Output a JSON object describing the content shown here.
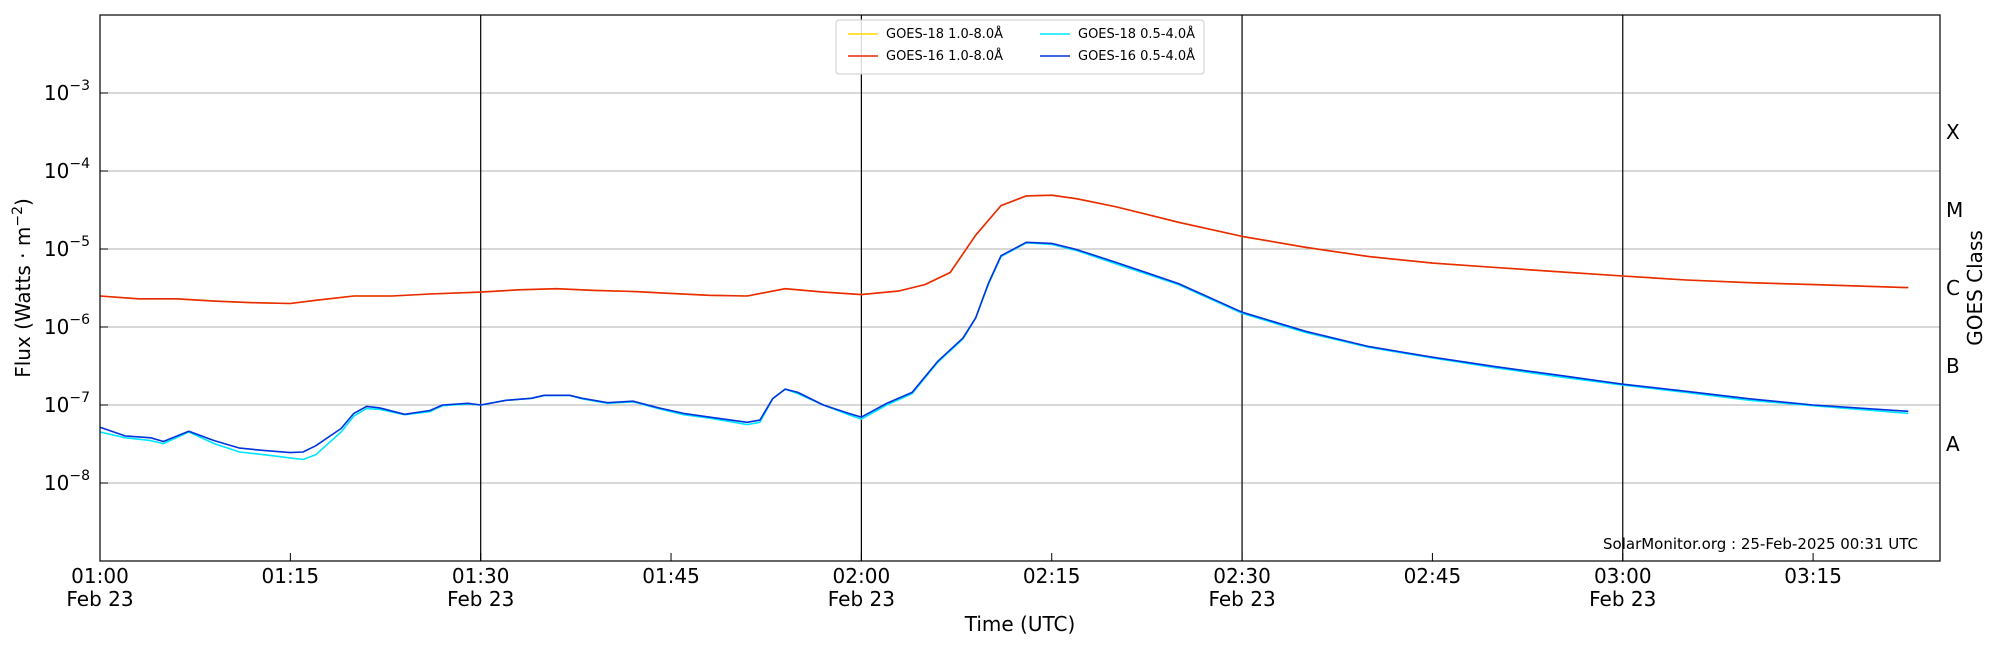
{
  "chart_data": {
    "type": "line",
    "xlabel": "Time (UTC)",
    "ylabel": "Flux (Watts · m",
    "ylabel_sup": "−2",
    "ylabel_close": ")",
    "y2label": "GOES Class",
    "yscale": "log",
    "xlim": [
      0,
      145
    ],
    "ylim": [
      1e-09,
      0.01
    ],
    "grid": "horizontal at decades",
    "legend_position": "top-center",
    "watermark": "SolarMonitor.org : 25-Feb-2025 00:31 UTC",
    "x_ticks": [
      {
        "minute": 0,
        "time": "01:00",
        "date": "Feb 23",
        "major": true
      },
      {
        "minute": 15,
        "time": "01:15",
        "date": "",
        "major": false
      },
      {
        "minute": 30,
        "time": "01:30",
        "date": "Feb 23",
        "major": true
      },
      {
        "minute": 45,
        "time": "01:45",
        "date": "",
        "major": false
      },
      {
        "minute": 60,
        "time": "02:00",
        "date": "Feb 23",
        "major": true
      },
      {
        "minute": 75,
        "time": "02:15",
        "date": "",
        "major": false
      },
      {
        "minute": 90,
        "time": "02:30",
        "date": "Feb 23",
        "major": true
      },
      {
        "minute": 105,
        "time": "02:45",
        "date": "",
        "major": false
      },
      {
        "minute": 120,
        "time": "03:00",
        "date": "Feb 23",
        "major": true
      },
      {
        "minute": 135,
        "time": "03:15",
        "date": "",
        "major": false
      }
    ],
    "y_ticks": [
      {
        "exp": -3,
        "label_base": "10",
        "label_exp": "−3"
      },
      {
        "exp": -4,
        "label_base": "10",
        "label_exp": "−4"
      },
      {
        "exp": -5,
        "label_base": "10",
        "label_exp": "−5"
      },
      {
        "exp": -6,
        "label_base": "10",
        "label_exp": "−6"
      },
      {
        "exp": -7,
        "label_base": "10",
        "label_exp": "−7"
      },
      {
        "exp": -8,
        "label_base": "10",
        "label_exp": "−8"
      }
    ],
    "goes_classes": [
      {
        "label": "X",
        "exp": -3.5
      },
      {
        "label": "M",
        "exp": -4.5
      },
      {
        "label": "C",
        "exp": -5.5
      },
      {
        "label": "B",
        "exp": -6.5
      },
      {
        "label": "A",
        "exp": -7.5
      }
    ],
    "series": [
      {
        "name": "GOES-18 1.0-8.0Å",
        "color": "#ffd700",
        "x": [
          0,
          3,
          6,
          9,
          12,
          15,
          17,
          20,
          23,
          26,
          30,
          33,
          36,
          39,
          42,
          45,
          48,
          51,
          54,
          57,
          60,
          63,
          65,
          67,
          69,
          71,
          73,
          75,
          77,
          80,
          85,
          90,
          95,
          100,
          105,
          110,
          115,
          120,
          125,
          130,
          135,
          142.5
        ],
        "y": [
          2.5e-06,
          2.3e-06,
          2.3e-06,
          2.15e-06,
          2.05e-06,
          2e-06,
          2.2e-06,
          2.5e-06,
          2.5e-06,
          2.65e-06,
          2.8e-06,
          3e-06,
          3.1e-06,
          2.95e-06,
          2.85e-06,
          2.7e-06,
          2.55e-06,
          2.5e-06,
          3.1e-06,
          2.8e-06,
          2.6e-06,
          2.9e-06,
          3.5e-06,
          5e-06,
          1.5e-05,
          3.6e-05,
          4.8e-05,
          4.9e-05,
          4.4e-05,
          3.5e-05,
          2.2e-05,
          1.45e-05,
          1.05e-05,
          8e-06,
          6.6e-06,
          5.8e-06,
          5.1e-06,
          4.5e-06,
          4e-06,
          3.7e-06,
          3.5e-06,
          3.2e-06
        ]
      },
      {
        "name": "GOES-16 1.0-8.0Å",
        "color": "#e8290b",
        "x": [
          0,
          3,
          6,
          9,
          12,
          15,
          17,
          20,
          23,
          26,
          30,
          33,
          36,
          39,
          42,
          45,
          48,
          51,
          54,
          57,
          60,
          63,
          65,
          67,
          69,
          71,
          73,
          75,
          77,
          80,
          85,
          90,
          95,
          100,
          105,
          110,
          115,
          120,
          125,
          130,
          135,
          142.5
        ],
        "y": [
          2.5e-06,
          2.3e-06,
          2.3e-06,
          2.15e-06,
          2.05e-06,
          2e-06,
          2.2e-06,
          2.5e-06,
          2.5e-06,
          2.65e-06,
          2.8e-06,
          3e-06,
          3.1e-06,
          2.95e-06,
          2.85e-06,
          2.7e-06,
          2.55e-06,
          2.5e-06,
          3.1e-06,
          2.8e-06,
          2.6e-06,
          2.9e-06,
          3.5e-06,
          5e-06,
          1.5e-05,
          3.6e-05,
          4.8e-05,
          4.9e-05,
          4.4e-05,
          3.5e-05,
          2.2e-05,
          1.45e-05,
          1.05e-05,
          8e-06,
          6.6e-06,
          5.8e-06,
          5.1e-06,
          4.5e-06,
          4e-06,
          3.7e-06,
          3.5e-06,
          3.2e-06
        ]
      },
      {
        "name": "GOES-18 0.5-4.0Å",
        "color": "#00e5ff",
        "x": [
          0,
          2,
          4,
          5,
          7,
          9,
          11,
          13,
          15,
          16,
          17,
          19,
          20,
          21,
          22,
          24,
          26,
          27,
          29,
          30,
          32,
          34,
          35,
          37,
          38,
          40,
          42,
          44,
          46,
          48,
          51,
          52,
          53,
          54,
          55,
          57,
          59,
          60,
          62,
          64,
          66,
          68,
          69,
          70,
          71,
          73,
          75,
          77,
          80,
          85,
          90,
          95,
          100,
          105,
          110,
          115,
          120,
          125,
          130,
          135,
          142.5
        ],
        "y": [
          4.5e-08,
          3.8e-08,
          3.5e-08,
          3.2e-08,
          4.5e-08,
          3.2e-08,
          2.5e-08,
          2.3e-08,
          2.1e-08,
          2e-08,
          2.3e-08,
          4.5e-08,
          7.2e-08,
          9e-08,
          8.8e-08,
          7.5e-08,
          8.2e-08,
          9.8e-08,
          1.03e-07,
          1e-07,
          1.15e-07,
          1.22e-07,
          1.32e-07,
          1.33e-07,
          1.2e-07,
          1.05e-07,
          1.1e-07,
          9e-08,
          7.5e-08,
          6.8e-08,
          5.6e-08,
          6e-08,
          1.2e-07,
          1.6e-07,
          1.4e-07,
          1e-07,
          7.5e-08,
          6.6e-08,
          1e-07,
          1.4e-07,
          3.5e-07,
          7e-07,
          1.3e-06,
          3.5e-06,
          8e-06,
          1.2e-05,
          1.15e-05,
          9.5e-06,
          6.5e-06,
          3.5e-06,
          1.5e-06,
          8.5e-07,
          5.5e-07,
          4e-07,
          3e-07,
          2.3e-07,
          1.8e-07,
          1.45e-07,
          1.15e-07,
          9.8e-08,
          7.8e-08
        ]
      },
      {
        "name": "GOES-16 0.5-4.0Å",
        "color": "#0033dd",
        "x": [
          0,
          2,
          4,
          5,
          7,
          9,
          11,
          13,
          15,
          16,
          17,
          19,
          20,
          21,
          22,
          24,
          26,
          27,
          29,
          30,
          32,
          34,
          35,
          37,
          38,
          40,
          42,
          44,
          46,
          48,
          51,
          52,
          53,
          54,
          55,
          57,
          59,
          60,
          62,
          64,
          66,
          68,
          69,
          70,
          71,
          73,
          75,
          77,
          80,
          85,
          90,
          95,
          100,
          105,
          110,
          115,
          120,
          125,
          130,
          135,
          142.5
        ],
        "y": [
          5.2e-08,
          4e-08,
          3.8e-08,
          3.4e-08,
          4.6e-08,
          3.5e-08,
          2.8e-08,
          2.6e-08,
          2.45e-08,
          2.5e-08,
          3e-08,
          5e-08,
          7.8e-08,
          9.6e-08,
          9.2e-08,
          7.6e-08,
          8.5e-08,
          1e-07,
          1.05e-07,
          1e-07,
          1.15e-07,
          1.22e-07,
          1.33e-07,
          1.33e-07,
          1.22e-07,
          1.07e-07,
          1.12e-07,
          9.2e-08,
          7.8e-08,
          7e-08,
          6e-08,
          6.4e-08,
          1.2e-07,
          1.6e-07,
          1.45e-07,
          1e-07,
          7.8e-08,
          7e-08,
          1.05e-07,
          1.45e-07,
          3.6e-07,
          7.2e-07,
          1.3e-06,
          3.6e-06,
          8.2e-06,
          1.22e-05,
          1.18e-05,
          9.8e-06,
          6.8e-06,
          3.6e-06,
          1.55e-06,
          8.8e-07,
          5.6e-07,
          4.1e-07,
          3.1e-07,
          2.4e-07,
          1.85e-07,
          1.5e-07,
          1.2e-07,
          1e-07,
          8.3e-08
        ]
      }
    ]
  }
}
